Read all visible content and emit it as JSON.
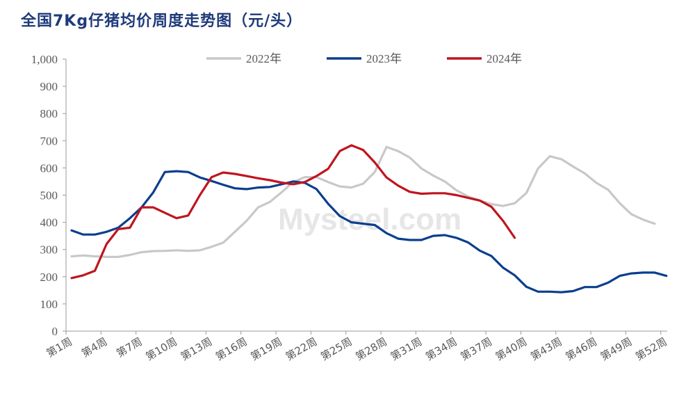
{
  "title": "全国7Kg仔猪均价周度走势图（元/头）",
  "watermark": "Mysteel.com",
  "colors": {
    "title": "#1f3a7a",
    "s2022": "#c8c8c8",
    "s2023": "#0b3e8e",
    "s2024": "#c0141e"
  },
  "chart_data": {
    "type": "line",
    "title": "全国7Kg仔猪均价周度走势图（元/头）",
    "ylim": [
      0,
      1000
    ],
    "yticks": [
      "0",
      "100",
      "200",
      "300",
      "400",
      "500",
      "600",
      "700",
      "800",
      "900",
      "1,000"
    ],
    "ytick_values": [
      0,
      100,
      200,
      300,
      400,
      500,
      600,
      700,
      800,
      900,
      1000
    ],
    "x_tick_labels": [
      "第1周",
      "第4周",
      "第7周",
      "第10周",
      "第13周",
      "第16周",
      "第19周",
      "第22周",
      "第25周",
      "第28周",
      "第31周",
      "第34周",
      "第37周",
      "第40周",
      "第43周",
      "第46周",
      "第49周",
      "第52周"
    ],
    "x_tick_weeks": [
      1,
      4,
      7,
      10,
      13,
      16,
      19,
      22,
      25,
      28,
      31,
      34,
      37,
      40,
      43,
      46,
      49,
      52
    ],
    "legend_position": "top",
    "series": [
      {
        "name": "2022年",
        "color": "#c8c8c8",
        "values": [
          275,
          278,
          275,
          273,
          273,
          280,
          290,
          294,
          295,
          297,
          295,
          297,
          310,
          325,
          365,
          405,
          455,
          475,
          510,
          548,
          566,
          566,
          548,
          532,
          528,
          542,
          585,
          677,
          662,
          638,
          598,
          572,
          550,
          518,
          495,
          480,
          467,
          460,
          470,
          508,
          598,
          643,
          632,
          605,
          580,
          545,
          520,
          470,
          430,
          410,
          395
        ]
      },
      {
        "name": "2023年",
        "color": "#0b3e8e",
        "values": [
          370,
          355,
          355,
          365,
          380,
          415,
          455,
          510,
          585,
          588,
          585,
          565,
          552,
          538,
          525,
          522,
          528,
          530,
          540,
          550,
          545,
          522,
          468,
          423,
          400,
          395,
          390,
          360,
          340,
          335,
          335,
          350,
          353,
          343,
          326,
          296,
          276,
          233,
          205,
          163,
          145,
          145,
          143,
          147,
          162,
          162,
          178,
          203,
          212,
          215,
          215,
          203
        ]
      },
      {
        "name": "2024年",
        "color": "#c0141e",
        "values": [
          195,
          205,
          222,
          320,
          375,
          380,
          455,
          455,
          435,
          415,
          425,
          500,
          566,
          583,
          578,
          570,
          562,
          555,
          546,
          540,
          548,
          570,
          597,
          662,
          683,
          666,
          620,
          565,
          535,
          512,
          505,
          507,
          507,
          500,
          490,
          480,
          457,
          405,
          343
        ]
      }
    ]
  }
}
